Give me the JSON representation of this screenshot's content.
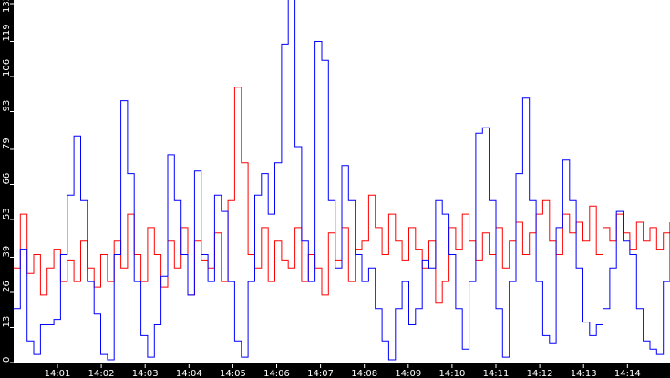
{
  "chart_data": {
    "type": "line",
    "title": "",
    "xlabel": "",
    "ylabel": "",
    "ylim": [
      0,
      133
    ],
    "y_ticks": [
      0,
      13,
      26,
      39,
      53,
      66,
      79,
      93,
      106,
      119,
      133
    ],
    "x_ticks": [
      "14:01",
      "14:02",
      "14:03",
      "14:04",
      "14:05",
      "14:06",
      "14:07",
      "14:08",
      "14:09",
      "14:10",
      "14:11",
      "14:12",
      "14:13",
      "14:14"
    ],
    "x_range": [
      "14:00",
      "14:15"
    ],
    "grid": false,
    "legend": null,
    "colors": {
      "background": "#000000",
      "plot_background": "#ffffff",
      "axis_text": "#ffffff"
    },
    "series": [
      {
        "name": "blue",
        "color": "#0000ff",
        "values": [
          20,
          42,
          8,
          3,
          14,
          14,
          16,
          40,
          62,
          84,
          60,
          30,
          18,
          3,
          1,
          40,
          97,
          70,
          30,
          10,
          2,
          14,
          32,
          77,
          60,
          40,
          25,
          71,
          40,
          30,
          62,
          56,
          30,
          8,
          2,
          30,
          62,
          70,
          55,
          74,
          118,
          136,
          80,
          45,
          30,
          119,
          112,
          60,
          35,
          73,
          60,
          40,
          30,
          35,
          20,
          8,
          1,
          20,
          30,
          14,
          20,
          38,
          35,
          60,
          55,
          40,
          20,
          5,
          30,
          85,
          87,
          60,
          20,
          2,
          30,
          70,
          98,
          60,
          30,
          10,
          7,
          50,
          75,
          60,
          35,
          15,
          10,
          14,
          20,
          35,
          56,
          45,
          40,
          20,
          8,
          5,
          3,
          30,
          52
        ]
      },
      {
        "name": "red",
        "color": "#ff0000",
        "values": [
          35,
          55,
          33,
          40,
          25,
          35,
          42,
          30,
          38,
          30,
          45,
          35,
          28,
          40,
          30,
          45,
          35,
          55,
          40,
          30,
          50,
          40,
          28,
          45,
          35,
          50,
          25,
          45,
          38,
          35,
          48,
          30,
          60,
          102,
          74,
          40,
          35,
          50,
          30,
          45,
          38,
          35,
          50,
          30,
          40,
          35,
          25,
          48,
          38,
          50,
          30,
          42,
          45,
          62,
          50,
          40,
          55,
          45,
          38,
          50,
          42,
          35,
          45,
          22,
          30,
          50,
          42,
          55,
          45,
          38,
          48,
          40,
          50,
          35,
          45,
          52,
          40,
          48,
          55,
          60,
          45,
          40,
          55,
          48,
          52,
          45,
          58,
          40,
          50,
          45,
          55,
          48,
          42,
          52,
          45,
          50,
          42,
          48,
          45
        ]
      }
    ]
  }
}
